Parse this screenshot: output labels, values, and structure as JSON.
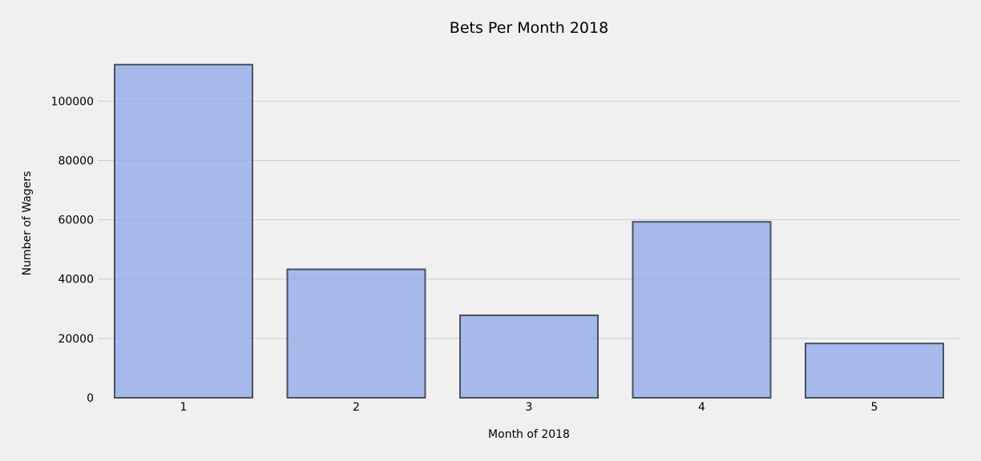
{
  "chart_data": {
    "type": "bar",
    "title": "Bets Per Month 2018",
    "xlabel": "Month of 2018",
    "ylabel": "Number of Wagers",
    "categories": [
      "1",
      "2",
      "3",
      "4",
      "5"
    ],
    "values": [
      112300,
      43300,
      27800,
      59300,
      18300
    ],
    "ylim": [
      0,
      117900
    ],
    "yticks": [
      0,
      20000,
      40000,
      60000,
      80000,
      100000
    ],
    "grid": "horizontal",
    "colors": {
      "bar_fill": "#8ca8e8",
      "bar_fill_opacity": 0.75,
      "bar_edge": "#4a5060",
      "background": "#f0f0f0",
      "grid": "#cbcbcb"
    }
  }
}
